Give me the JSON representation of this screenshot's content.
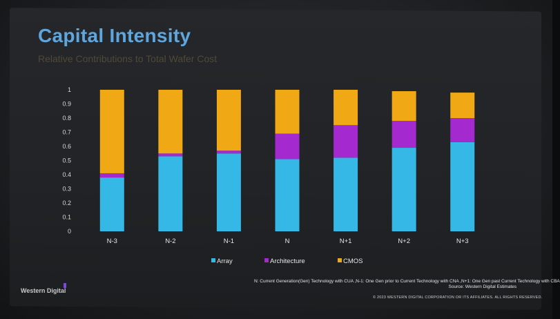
{
  "slide": {
    "title": "Capital Intensity",
    "subtitle": "Relative Contributions to Total Wafer Cost",
    "footnote": "N: Current Generation(Gen) Technology with CUA ,N-1: One Gen prior to Current Technology with CNA ,N+1: One Gen past Current Technology with CBA",
    "footnote_source": "Source: Western Digital Estimates",
    "copyright": "© 2023 WESTERN DIGITAL CORPORATION OR ITS AFFILIATES.  ALL RIGHTS RESERVED.",
    "logo": "Western Digital"
  },
  "chart_data": {
    "type": "bar",
    "stacked": true,
    "categories": [
      "N-3",
      "N-2",
      "N-1",
      "N",
      "N+1",
      "N+2",
      "N+3"
    ],
    "series": [
      {
        "name": "Array",
        "color": "#36b8e6",
        "values": [
          0.38,
          0.53,
          0.55,
          0.51,
          0.52,
          0.59,
          0.63
        ]
      },
      {
        "name": "Architecture",
        "color": "#a42ad0",
        "values": [
          0.03,
          0.02,
          0.02,
          0.18,
          0.23,
          0.19,
          0.17
        ]
      },
      {
        "name": "CMOS",
        "color": "#f0a814",
        "values": [
          0.59,
          0.45,
          0.43,
          0.31,
          0.25,
          0.21,
          0.18
        ]
      }
    ],
    "ylim": [
      0,
      1
    ],
    "yticks": [
      "0",
      "0.1",
      "0.2",
      "0.3",
      "0.4",
      "0.5",
      "0.6",
      "0.7",
      "0.8",
      "0.9",
      "1"
    ],
    "legend_position": "bottom-center",
    "xlabel": "",
    "ylabel": ""
  }
}
